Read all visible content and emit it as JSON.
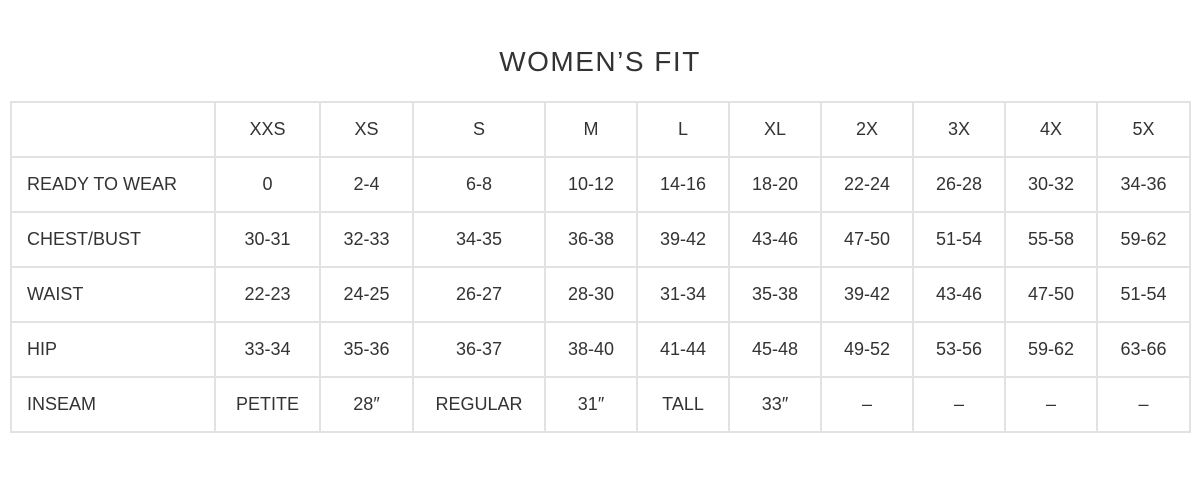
{
  "title": "WOMEN’S FIT",
  "table": {
    "headers": [
      "",
      "XXS",
      "XS",
      "S",
      "M",
      "L",
      "XL",
      "2X",
      "3X",
      "4X",
      "5X"
    ],
    "rows": [
      {
        "label": "READY TO WEAR",
        "values": [
          "0",
          "2-4",
          "6-8",
          "10-12",
          "14-16",
          "18-20",
          "22-24",
          "26-28",
          "30-32",
          "34-36"
        ]
      },
      {
        "label": "CHEST/BUST",
        "values": [
          "30-31",
          "32-33",
          "34-35",
          "36-38",
          "39-42",
          "43-46",
          "47-50",
          "51-54",
          "55-58",
          "59-62"
        ]
      },
      {
        "label": "WAIST",
        "values": [
          "22-23",
          "24-25",
          "26-27",
          "28-30",
          "31-34",
          "35-38",
          "39-42",
          "43-46",
          "47-50",
          "51-54"
        ]
      },
      {
        "label": "HIP",
        "values": [
          "33-34",
          "35-36",
          "36-37",
          "38-40",
          "41-44",
          "45-48",
          "49-52",
          "53-56",
          "59-62",
          "63-66"
        ]
      },
      {
        "label": "INSEAM",
        "values": [
          "PETITE",
          "28″",
          "REGULAR",
          "31″",
          "TALL",
          "33″",
          "–",
          "–",
          "–",
          "–"
        ]
      }
    ]
  }
}
